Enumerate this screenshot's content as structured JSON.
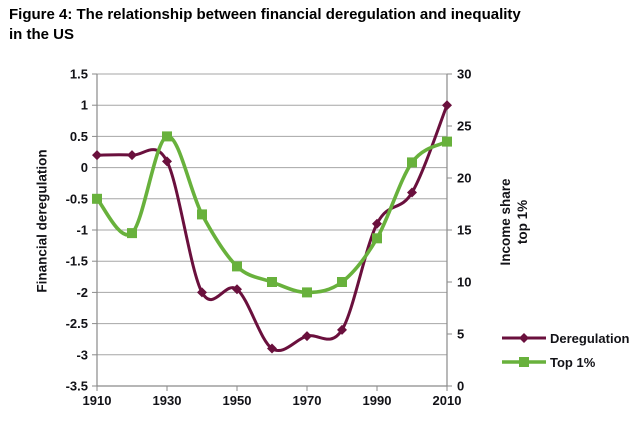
{
  "title_lines": [
    "Figure 4: The relationship between financial deregulation and inequality",
    "in the US"
  ],
  "chart_data": {
    "type": "line",
    "title": "Figure 4: The relationship between financial deregulation and inequality in the US",
    "x": [
      1910,
      1920,
      1930,
      1940,
      1950,
      1960,
      1970,
      1980,
      1990,
      2000,
      2010
    ],
    "x_tick_labels": [
      "1910",
      "1930",
      "1950",
      "1970",
      "1990",
      "2010"
    ],
    "series": [
      {
        "name": "Deregulation",
        "axis": "left",
        "color": "#6a103d",
        "marker": "diamond",
        "values": [
          0.2,
          0.2,
          0.1,
          -2.0,
          -1.95,
          -2.9,
          -2.7,
          -2.6,
          -0.9,
          -0.4,
          1.0
        ]
      },
      {
        "name": "Top 1%",
        "axis": "right",
        "color": "#68b13c",
        "marker": "square",
        "values": [
          18,
          14.7,
          24,
          16.5,
          11.5,
          10,
          9,
          10,
          14.2,
          21.5,
          23.5
        ]
      }
    ],
    "left_axis": {
      "label": "Financial deregulation",
      "min": -3.5,
      "max": 1.5,
      "tick_labels": [
        "1.5",
        "1",
        "0.5",
        "0",
        "-0.5",
        "-1",
        "-1.5",
        "-2",
        "-2.5",
        "-3",
        "-3.5"
      ]
    },
    "right_axis": {
      "label": "Income share top 1%",
      "label_lines": [
        "Income share",
        "top 1%"
      ],
      "min": 0,
      "max": 30,
      "tick_labels": [
        "30",
        "25",
        "20",
        "15",
        "10",
        "5",
        "0"
      ]
    },
    "grid": "horizontal",
    "smooth_lines": true,
    "legend": {
      "position": "right",
      "entries": [
        "Deregulation",
        "Top 1%"
      ]
    }
  },
  "colors": {
    "background": "#ffffff",
    "grid": "#a6a6a6",
    "axis": "#8a8a8a",
    "text": "#121217",
    "deregulation": "#6a103d",
    "top1": "#68b13c"
  }
}
